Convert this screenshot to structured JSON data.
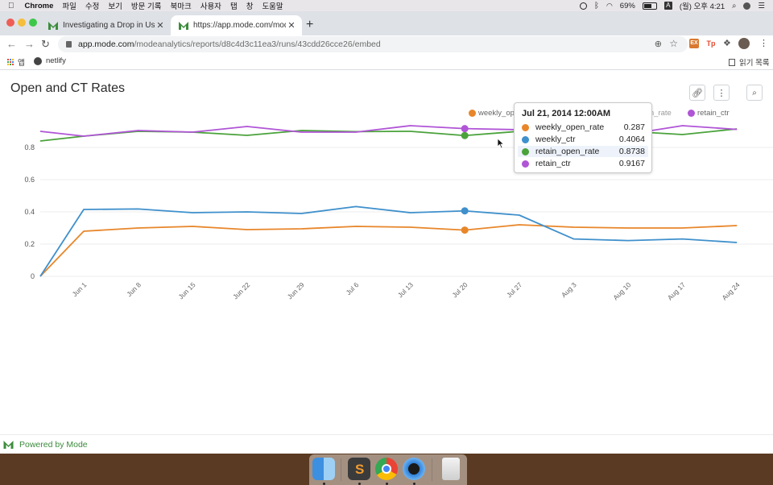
{
  "menubar": {
    "app_name": "Chrome",
    "menus": [
      "파일",
      "수정",
      "보기",
      "방문 기록",
      "북마크",
      "사용자",
      "탭",
      "창",
      "도움말"
    ],
    "battery": "69%",
    "input_source": "A",
    "clock": "(월) 오후 4:21"
  },
  "tabs": [
    {
      "title": "Investigating a Drop in User En",
      "active": false
    },
    {
      "title": "https://app.mode.com/modeanal",
      "active": true
    }
  ],
  "address_bar": {
    "domain": "app.mode.com",
    "path": "/modeanalytics/reports/d8c4d3c11ea3/runs/43cdd26cce26/embed"
  },
  "extensions": [
    "EX",
    "Tp"
  ],
  "bookmarks": {
    "apps_label": "앱",
    "items": [
      "netlify"
    ],
    "reading_list": "읽기 목록"
  },
  "report": {
    "title": "Open and CT Rates",
    "powered_by": "Powered by Mode"
  },
  "colors": {
    "weekly_open_rate": "#e8862a",
    "weekly_ctr": "#3f90cc",
    "retain_open_rate": "#4aa23b",
    "retain_ctr": "#b055d6",
    "mode_green": "#3c8c3c"
  },
  "chart_data": {
    "type": "line",
    "x": [
      "Jun 1",
      "Jun 8",
      "Jun 15",
      "Jun 22",
      "Jun 29",
      "Jul 6",
      "Jul 13",
      "Jul 20",
      "Jul 27",
      "Aug 3",
      "Aug 10",
      "Aug 17",
      "Aug 24"
    ],
    "x_tick_labels": [
      "Jun 1",
      "Jun 8",
      "Jun 15",
      "Jun 22",
      "Jun 29",
      "Jul 6",
      "Jul 13",
      "Jul 20",
      "Jul 27",
      "Aug 3",
      "Aug 10",
      "Aug 17",
      "Aug 24"
    ],
    "first_point_y": 0,
    "series": [
      {
        "name": "weekly_open_rate",
        "values": [
          0.28,
          0.3,
          0.31,
          0.29,
          0.295,
          0.31,
          0.305,
          0.287,
          0.32,
          0.305,
          0.3,
          0.3,
          0.315
        ]
      },
      {
        "name": "weekly_ctr",
        "values": [
          0.415,
          0.418,
          0.395,
          0.4,
          0.39,
          0.433,
          0.395,
          0.4064,
          0.38,
          0.232,
          0.222,
          0.232,
          0.21
        ]
      },
      {
        "name": "retain_open_rate",
        "values": [
          0.87,
          0.9,
          0.895,
          0.875,
          0.905,
          0.898,
          0.9,
          0.8738,
          0.9,
          0.895,
          0.9,
          0.88,
          0.915
        ]
      },
      {
        "name": "retain_ctr",
        "values": [
          0.87,
          0.905,
          0.895,
          0.93,
          0.895,
          0.895,
          0.935,
          0.9167,
          0.91,
          0.875,
          0.882,
          0.935,
          0.912
        ]
      }
    ],
    "first_values": {
      "weekly_open_rate": 0,
      "weekly_ctr": 0,
      "retain_open_rate": 0.84,
      "retain_ctr": 0.9
    },
    "ylim": [
      0,
      1
    ],
    "y_ticks": [
      "0",
      "0.2",
      "0.4",
      "0.6",
      "0.8"
    ],
    "grid": true,
    "legend_placement": "top-right",
    "tooltip": {
      "title": "Jul 21, 2014 12:00AM",
      "rows": [
        {
          "name": "weekly_open_rate",
          "value": "0.287"
        },
        {
          "name": "weekly_ctr",
          "value": "0.4064"
        },
        {
          "name": "retain_open_rate",
          "value": "0.8738"
        },
        {
          "name": "retain_ctr",
          "value": "0.9167"
        }
      ]
    }
  },
  "legend": {
    "items": [
      "weekly_op",
      "retain_open_rate",
      "retain_ctr"
    ]
  }
}
